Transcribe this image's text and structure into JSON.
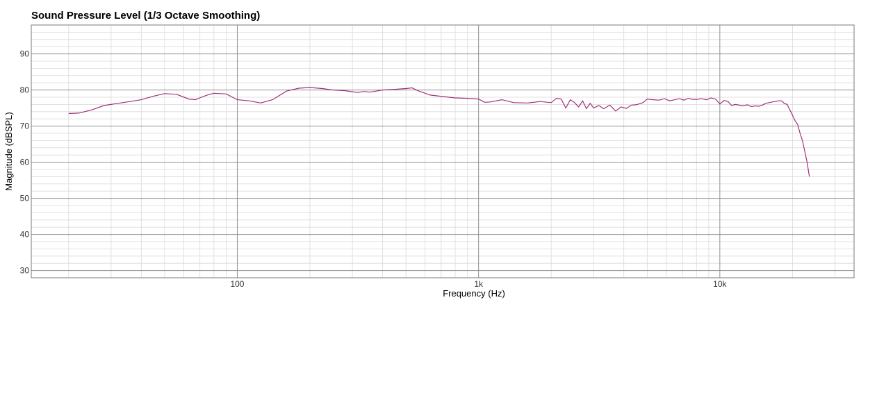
{
  "chart_data": {
    "type": "line",
    "title": "Sound Pressure Level (1/3 Octave Smoothing)",
    "xlabel": "Frequency (Hz)",
    "ylabel": "Magnitude (dBSPL)",
    "x_scale": "log",
    "xlim": [
      14,
      36000
    ],
    "ylim": [
      28,
      98
    ],
    "x_ticks": [
      {
        "value": 100,
        "label": "100"
      },
      {
        "value": 1000,
        "label": "1k"
      },
      {
        "value": 10000,
        "label": "10k"
      }
    ],
    "y_ticks": [
      30,
      40,
      50,
      60,
      70,
      80,
      90
    ],
    "grid": true,
    "line_color": "#a0307a",
    "series": [
      {
        "x": [
          20,
          22,
          25,
          28,
          32,
          36,
          40,
          45,
          50,
          56,
          63,
          67,
          71,
          75,
          80,
          90,
          100,
          112,
          125,
          140,
          160,
          180,
          200,
          225,
          250,
          280,
          315,
          335,
          355,
          400,
          450,
          500,
          530,
          560,
          630,
          710,
          800,
          900,
          1000,
          1060,
          1120,
          1250,
          1400,
          1600,
          1800,
          2000,
          2100,
          2200,
          2300,
          2400,
          2500,
          2600,
          2700,
          2800,
          2900,
          3000,
          3150,
          3300,
          3500,
          3700,
          3900,
          4100,
          4300,
          4500,
          4800,
          5000,
          5300,
          5600,
          5900,
          6200,
          6500,
          6800,
          7100,
          7400,
          7700,
          8000,
          8400,
          8800,
          9200,
          9600,
          10000,
          10400,
          10800,
          11200,
          11600,
          12000,
          12500,
          13000,
          13500,
          14000,
          14500,
          15000,
          15500,
          16000,
          16500,
          17000,
          17500,
          18000,
          18500,
          19000,
          19500,
          20000,
          20500,
          21000,
          21500,
          22000,
          22500,
          23000,
          23500
        ],
        "y": [
          73.5,
          73.6,
          74.5,
          75.7,
          76.3,
          76.8,
          77.3,
          78.3,
          79.0,
          78.8,
          77.5,
          77.3,
          78.0,
          78.6,
          79.1,
          78.9,
          77.3,
          77.0,
          76.4,
          77.3,
          79.7,
          80.5,
          80.7,
          80.4,
          80.0,
          79.8,
          79.3,
          79.6,
          79.4,
          80.0,
          80.2,
          80.4,
          80.6,
          79.8,
          78.6,
          78.2,
          77.8,
          77.7,
          77.5,
          76.6,
          76.7,
          77.3,
          76.5,
          76.4,
          76.8,
          76.5,
          77.7,
          77.5,
          75.0,
          77.3,
          76.5,
          75.3,
          77.0,
          74.8,
          76.3,
          75.0,
          75.7,
          74.8,
          75.8,
          74.2,
          75.3,
          74.9,
          75.8,
          75.9,
          76.5,
          77.5,
          77.3,
          77.2,
          77.6,
          77.0,
          77.3,
          77.6,
          77.2,
          77.7,
          77.4,
          77.4,
          77.6,
          77.3,
          77.8,
          77.5,
          76.1,
          77.1,
          76.8,
          75.7,
          76.0,
          75.8,
          75.6,
          75.9,
          75.4,
          75.6,
          75.5,
          75.8,
          76.3,
          76.5,
          76.7,
          76.8,
          77.0,
          77.0,
          76.3,
          76.0,
          74.5,
          73.0,
          71.5,
          70.5,
          68.0,
          66.0,
          63.0,
          60.0,
          56.0
        ]
      }
    ]
  }
}
